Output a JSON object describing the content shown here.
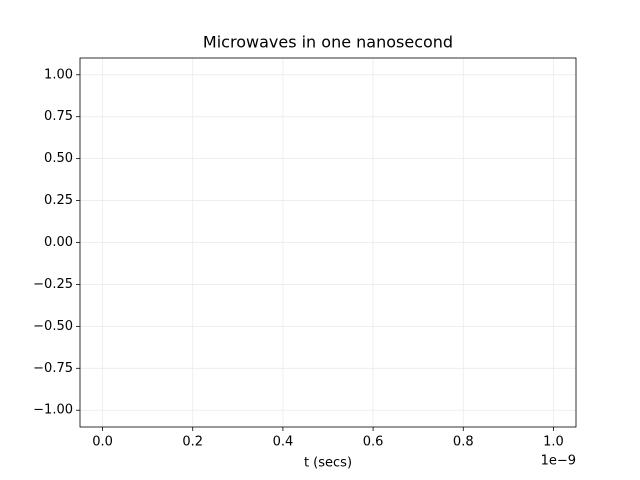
{
  "chart_data": {
    "type": "line",
    "title": "Microwaves in one nanosecond",
    "xlabel": "t (secs)",
    "x_offset_label": "1e−9",
    "xlim": [
      -5e-11,
      1.05e-09
    ],
    "ylim": [
      -1.1,
      1.1
    ],
    "xticks": [
      {
        "value": 0,
        "label": "0.0"
      },
      {
        "value": 2e-10,
        "label": "0.2"
      },
      {
        "value": 4e-10,
        "label": "0.4"
      },
      {
        "value": 6e-10,
        "label": "0.6"
      },
      {
        "value": 8e-10,
        "label": "0.8"
      },
      {
        "value": 1e-09,
        "label": "1.0"
      }
    ],
    "yticks": [
      {
        "value": 1,
        "label": "1.00"
      },
      {
        "value": 0.75,
        "label": "0.75"
      },
      {
        "value": 0.5,
        "label": "0.50"
      },
      {
        "value": 0.25,
        "label": "0.25"
      },
      {
        "value": 0,
        "label": "0.00"
      },
      {
        "value": -0.25,
        "label": "−0.25"
      },
      {
        "value": -0.5,
        "label": "−0.50"
      },
      {
        "value": -0.75,
        "label": "−0.75"
      },
      {
        "value": -1,
        "label": "−1.00"
      }
    ],
    "grid": true
  }
}
